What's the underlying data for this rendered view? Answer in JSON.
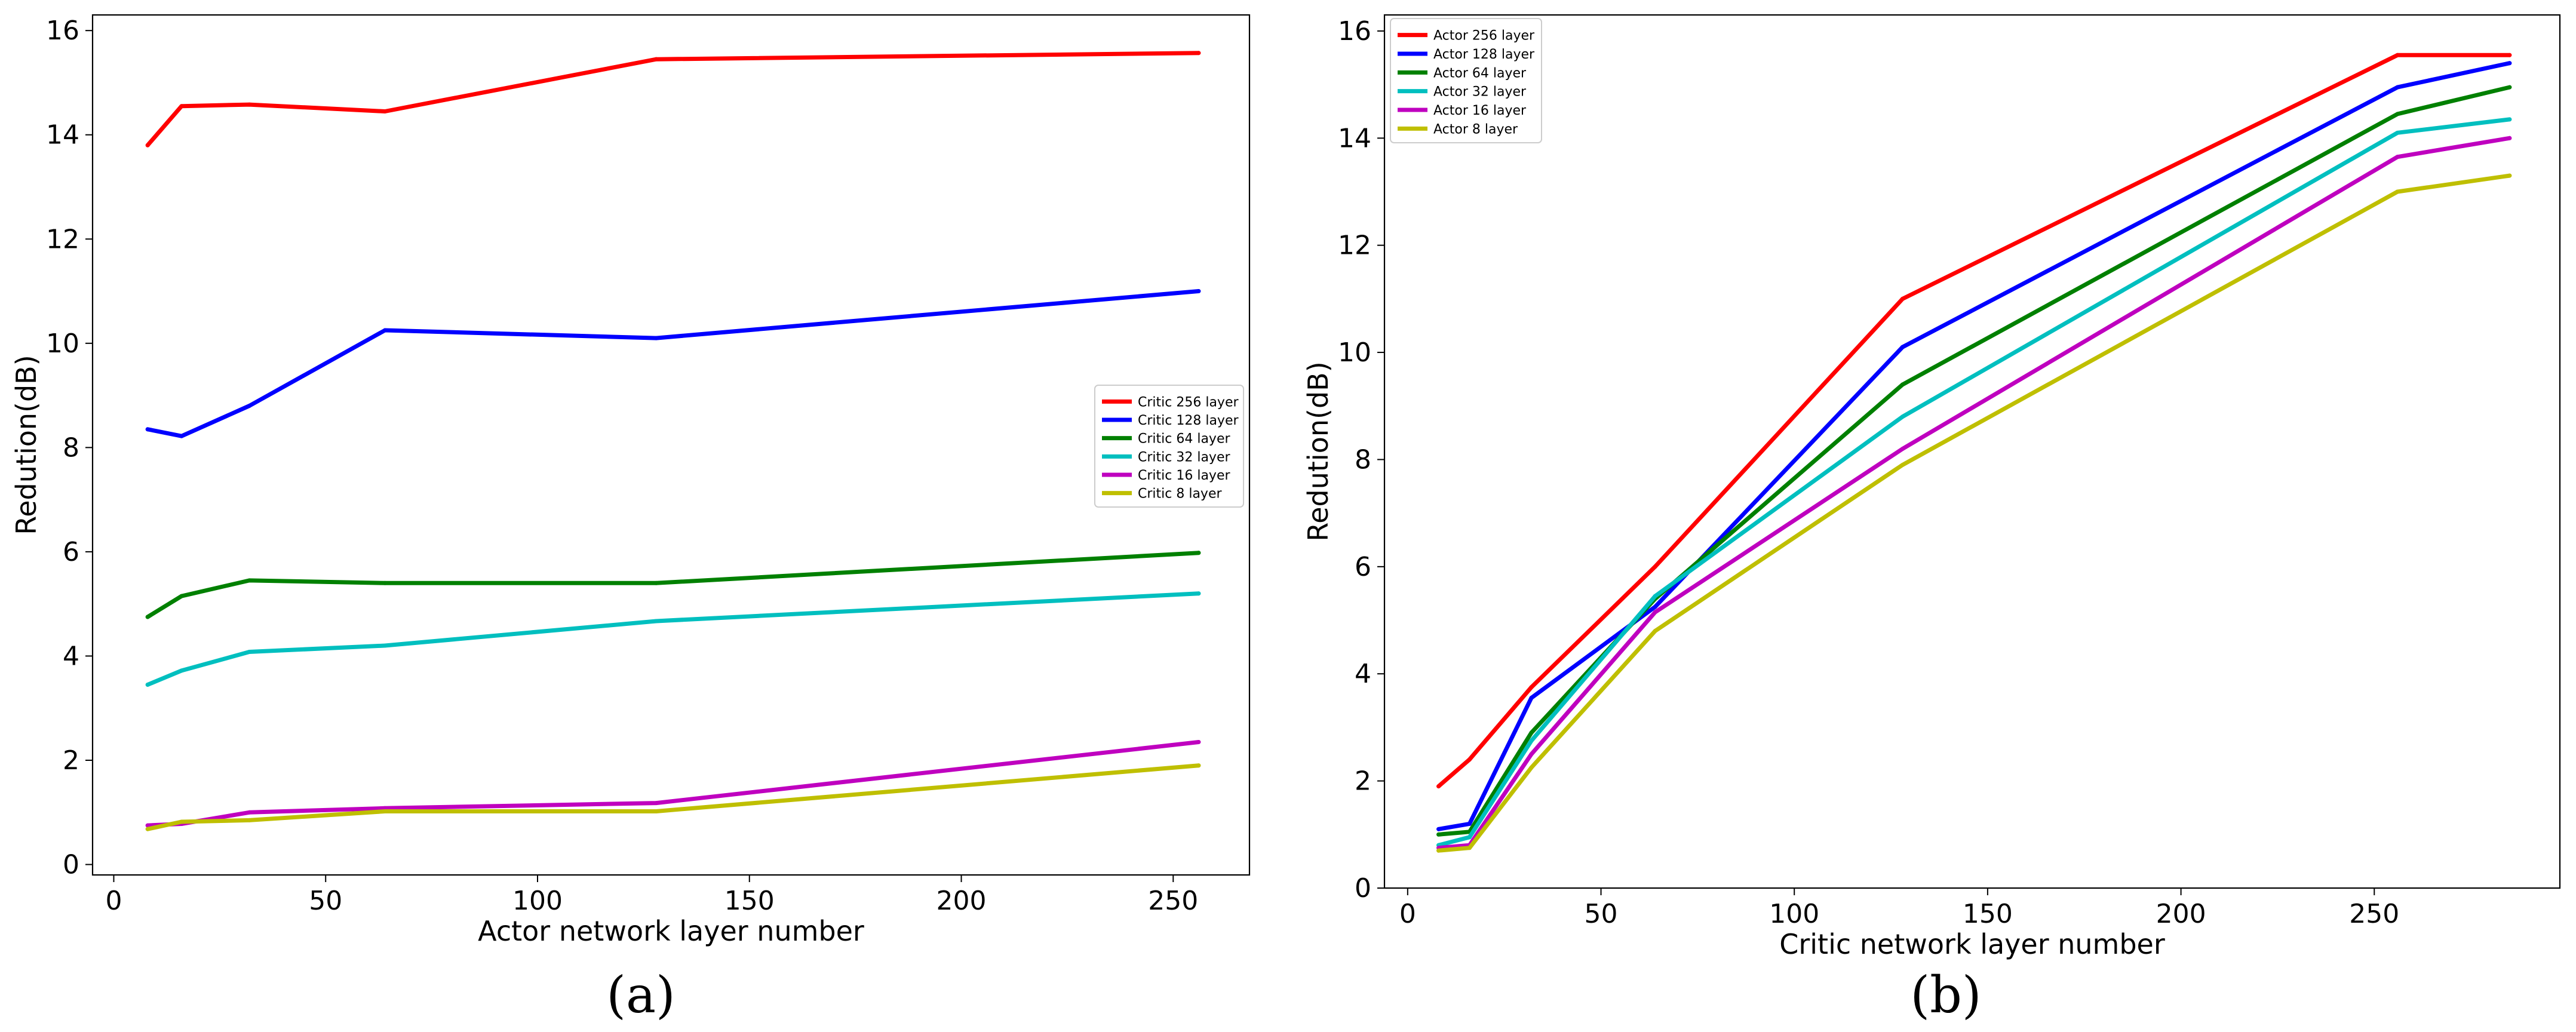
{
  "chart_data": [
    {
      "type": "line",
      "panel_label": "(a)",
      "xlabel": "Actor network layer number",
      "ylabel": "Redution(dB)",
      "xlim": [
        -5,
        268
      ],
      "ylim": [
        -0.2,
        16.3
      ],
      "xticks": [
        0,
        50,
        100,
        150,
        200,
        250
      ],
      "yticks": [
        0,
        2,
        4,
        6,
        8,
        10,
        12,
        14,
        16
      ],
      "legend_position": "center-right",
      "x": [
        8,
        16,
        32,
        64,
        128,
        256
      ],
      "series": [
        {
          "name": "Critic 256 layer",
          "color": "#ff0000",
          "values": [
            13.8,
            14.55,
            14.58,
            14.45,
            15.45,
            15.57
          ]
        },
        {
          "name": "Critic 128 layer",
          "color": "#0000ff",
          "values": [
            8.35,
            8.22,
            8.8,
            10.25,
            10.1,
            11.0
          ]
        },
        {
          "name": "Critic 64 layer",
          "color": "#008000",
          "values": [
            4.75,
            5.15,
            5.45,
            5.4,
            5.4,
            5.98
          ]
        },
        {
          "name": "Critic 32 layer",
          "color": "#00bfbf",
          "values": [
            3.45,
            3.72,
            4.08,
            4.2,
            4.67,
            5.2
          ]
        },
        {
          "name": "Critic 16 layer",
          "color": "#bf00bf",
          "values": [
            0.75,
            0.78,
            1.0,
            1.08,
            1.18,
            2.35
          ]
        },
        {
          "name": "Critic 8 layer",
          "color": "#bfbf00",
          "values": [
            0.68,
            0.82,
            0.85,
            1.02,
            1.02,
            1.9
          ]
        }
      ]
    },
    {
      "type": "line",
      "panel_label": "(b)",
      "xlabel": "Critic network layer number",
      "ylabel": "Redution(dB)",
      "xlim": [
        -6,
        298
      ],
      "ylim": [
        0,
        16.3
      ],
      "xticks": [
        0,
        50,
        100,
        150,
        200,
        250
      ],
      "yticks": [
        0,
        2,
        4,
        6,
        8,
        10,
        12,
        14,
        16
      ],
      "legend_position": "top-left",
      "x": [
        8,
        16,
        32,
        64,
        128,
        256,
        285
      ],
      "series": [
        {
          "name": "Actor 256 layer",
          "color": "#ff0000",
          "values": [
            1.9,
            2.4,
            3.75,
            6.0,
            11.0,
            15.55,
            15.55
          ]
        },
        {
          "name": "Actor 128 layer",
          "color": "#0000ff",
          "values": [
            1.1,
            1.2,
            3.55,
            5.25,
            10.1,
            14.95,
            15.4
          ]
        },
        {
          "name": "Actor 64 layer",
          "color": "#008000",
          "values": [
            1.0,
            1.05,
            2.9,
            5.4,
            9.4,
            14.45,
            14.95
          ]
        },
        {
          "name": "Actor 32 layer",
          "color": "#00bfbf",
          "values": [
            0.8,
            0.95,
            2.75,
            5.45,
            8.8,
            14.1,
            14.35
          ]
        },
        {
          "name": "Actor 16 layer",
          "color": "#bf00bf",
          "values": [
            0.75,
            0.8,
            2.5,
            5.15,
            8.2,
            13.65,
            14.0
          ]
        },
        {
          "name": "Actor 8 layer",
          "color": "#bfbf00",
          "values": [
            0.7,
            0.75,
            2.25,
            4.8,
            7.9,
            13.0,
            13.3
          ]
        }
      ]
    }
  ]
}
